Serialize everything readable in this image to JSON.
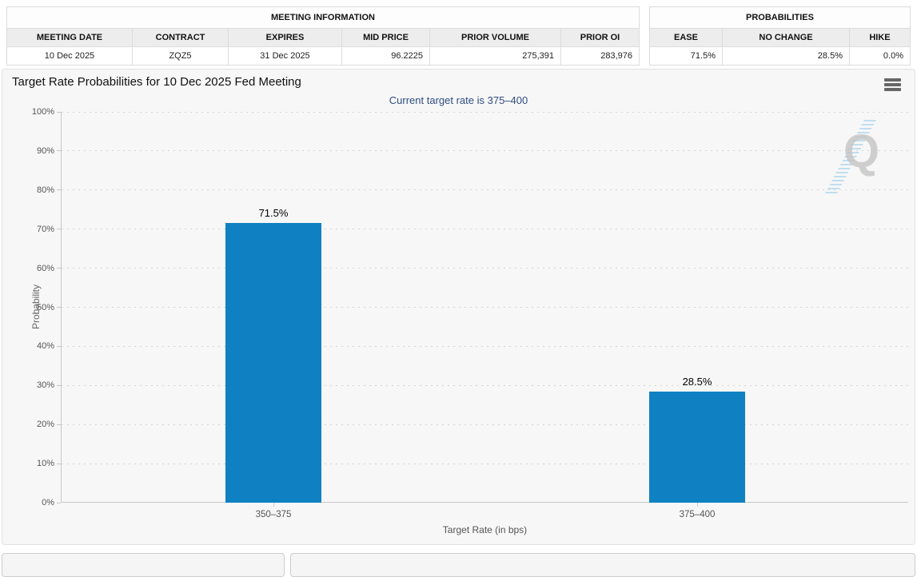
{
  "meeting_info_table": {
    "title": "MEETING INFORMATION",
    "columns": [
      {
        "label": "MEETING DATE",
        "value": "10 Dec 2025",
        "align": "center"
      },
      {
        "label": "CONTRACT",
        "value": "ZQZ5",
        "align": "center"
      },
      {
        "label": "EXPIRES",
        "value": "31 Dec 2025",
        "align": "center"
      },
      {
        "label": "MID PRICE",
        "value": "96.2225",
        "align": "right"
      },
      {
        "label": "PRIOR VOLUME",
        "value": "275,391",
        "align": "right"
      },
      {
        "label": "PRIOR OI",
        "value": "283,976",
        "align": "right"
      }
    ]
  },
  "probabilities_table": {
    "title": "PROBABILITIES",
    "columns": [
      {
        "label": "EASE",
        "value": "71.5%",
        "align": "right"
      },
      {
        "label": "NO CHANGE",
        "value": "28.5%",
        "align": "right"
      },
      {
        "label": "HIKE",
        "value": "0.0%",
        "align": "right"
      }
    ]
  },
  "chart_data": {
    "type": "bar",
    "title": "Target Rate Probabilities for 10 Dec 2025 Fed Meeting",
    "subtitle": "Current target rate is 375–400",
    "categories": [
      "350–375",
      "375–400"
    ],
    "values": [
      71.5,
      28.5
    ],
    "data_labels": [
      "71.5%",
      "28.5%"
    ],
    "xlabel": "Target Rate (in bps)",
    "ylabel": "Probability",
    "ylim": [
      0,
      100
    ],
    "ytick_step": 10,
    "ytick_labels": [
      "0%",
      "10%",
      "20%",
      "30%",
      "40%",
      "50%",
      "60%",
      "70%",
      "80%",
      "90%",
      "100%"
    ],
    "grid": "dotted horizontal",
    "legend": "none",
    "bar_color": "#0f81c2"
  },
  "icons": {
    "context_menu": "hamburger-menu",
    "watermark_letter": "Q"
  },
  "colors": {
    "subtitle": "#2f4d82",
    "bar": "#0f81c2",
    "panel_bg": "#f7f7f7",
    "table_header_bg": "#ededed"
  }
}
